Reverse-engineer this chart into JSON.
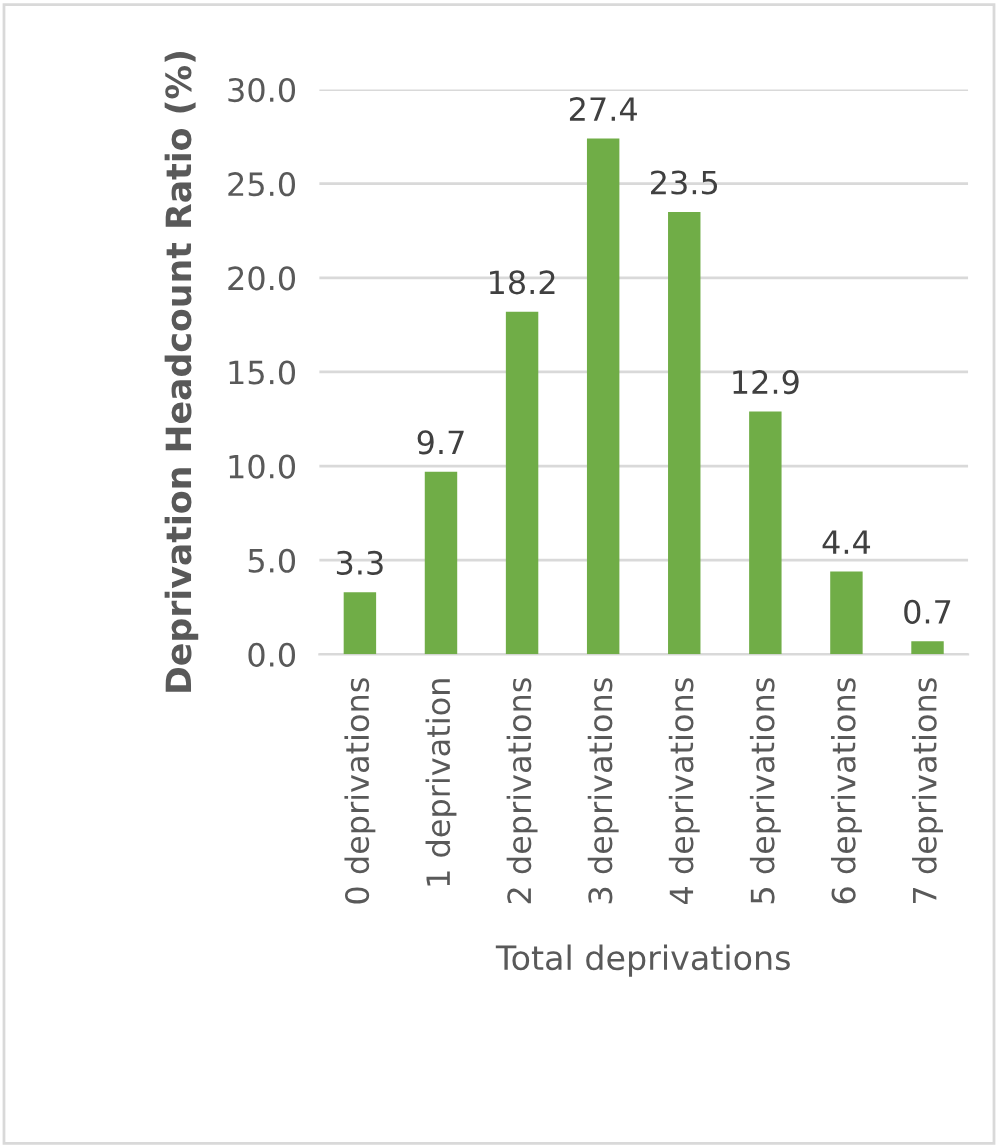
{
  "chart_data": {
    "type": "bar",
    "categories": [
      "0 deprivations",
      "1 deprivation",
      "2 deprivations",
      "3 deprivations",
      "4 deprivations",
      "5 deprivations",
      "6 deprivations",
      "7 deprivations"
    ],
    "values": [
      3.3,
      9.7,
      18.2,
      27.4,
      23.5,
      12.9,
      4.4,
      0.7
    ],
    "color": "#70ad47",
    "xlabel": "Total deprivations",
    "ylabel": "Deprivation Headcount Ratio (%)",
    "ylim": [
      0,
      30
    ],
    "yticks": [
      {
        "value": 0,
        "label": "0.0"
      },
      {
        "value": 5,
        "label": "5.0"
      },
      {
        "value": 10,
        "label": "10.0"
      },
      {
        "value": 15,
        "label": "15.0"
      },
      {
        "value": 20,
        "label": "20.0"
      },
      {
        "value": 25,
        "label": "25.0"
      },
      {
        "value": 30,
        "label": "30.0"
      }
    ],
    "grid": "y",
    "data_labels": true
  }
}
